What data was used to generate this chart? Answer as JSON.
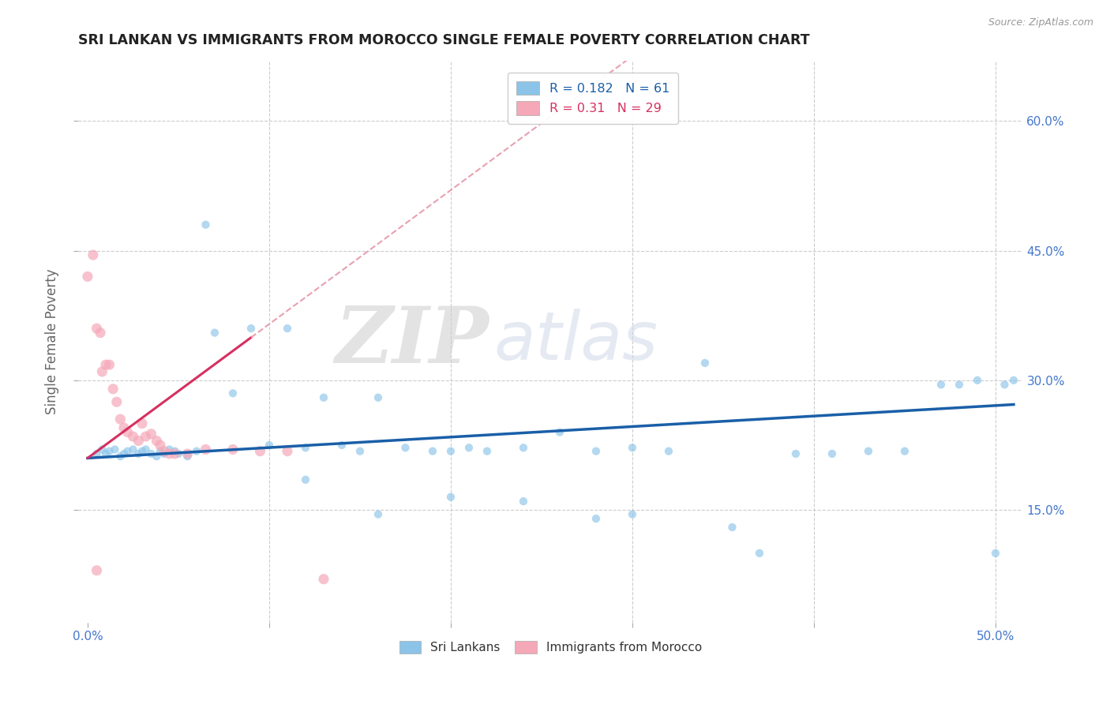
{
  "title": "SRI LANKAN VS IMMIGRANTS FROM MOROCCO SINGLE FEMALE POVERTY CORRELATION CHART",
  "source": "Source: ZipAtlas.com",
  "xlim": [
    -0.005,
    0.515
  ],
  "ylim": [
    0.02,
    0.67
  ],
  "ylabel": "Single Female Poverty",
  "sri_lankan": {
    "x": [
      0.005,
      0.008,
      0.01,
      0.012,
      0.015,
      0.018,
      0.02,
      0.022,
      0.025,
      0.028,
      0.03,
      0.032,
      0.035,
      0.038,
      0.04,
      0.042,
      0.045,
      0.048,
      0.05,
      0.055,
      0.06,
      0.065,
      0.07,
      0.08,
      0.09,
      0.1,
      0.11,
      0.12,
      0.13,
      0.14,
      0.15,
      0.16,
      0.175,
      0.19,
      0.2,
      0.21,
      0.22,
      0.24,
      0.26,
      0.28,
      0.3,
      0.32,
      0.34,
      0.355,
      0.37,
      0.39,
      0.41,
      0.43,
      0.45,
      0.47,
      0.48,
      0.49,
      0.5,
      0.505,
      0.51,
      0.12,
      0.16,
      0.2,
      0.24,
      0.28,
      0.3
    ],
    "y": [
      0.215,
      0.22,
      0.215,
      0.218,
      0.22,
      0.212,
      0.215,
      0.218,
      0.22,
      0.215,
      0.218,
      0.22,
      0.215,
      0.212,
      0.218,
      0.215,
      0.22,
      0.218,
      0.215,
      0.212,
      0.218,
      0.48,
      0.355,
      0.285,
      0.36,
      0.225,
      0.36,
      0.222,
      0.28,
      0.225,
      0.218,
      0.28,
      0.222,
      0.218,
      0.218,
      0.222,
      0.218,
      0.222,
      0.24,
      0.218,
      0.222,
      0.218,
      0.32,
      0.13,
      0.1,
      0.215,
      0.215,
      0.218,
      0.218,
      0.295,
      0.295,
      0.3,
      0.1,
      0.295,
      0.3,
      0.185,
      0.145,
      0.165,
      0.16,
      0.14,
      0.145
    ],
    "size": 55,
    "color": "#8bc4e8",
    "alpha": 0.65,
    "R": 0.182,
    "N": 61,
    "trend_color": "#1a5fa8",
    "trend_x_start": 0.0,
    "trend_x_end": 0.51,
    "trend_y_start": 0.21,
    "trend_y_end": 0.272
  },
  "morocco": {
    "x": [
      0.0,
      0.003,
      0.005,
      0.007,
      0.008,
      0.01,
      0.012,
      0.014,
      0.016,
      0.018,
      0.02,
      0.022,
      0.025,
      0.028,
      0.03,
      0.032,
      0.035,
      0.038,
      0.04,
      0.042,
      0.045,
      0.048,
      0.055,
      0.065,
      0.08,
      0.095,
      0.11,
      0.13,
      0.005
    ],
    "y": [
      0.42,
      0.445,
      0.36,
      0.355,
      0.31,
      0.318,
      0.318,
      0.29,
      0.275,
      0.255,
      0.245,
      0.24,
      0.235,
      0.23,
      0.25,
      0.235,
      0.238,
      0.23,
      0.225,
      0.218,
      0.215,
      0.215,
      0.215,
      0.22,
      0.22,
      0.218,
      0.218,
      0.07,
      0.08
    ],
    "size": 90,
    "color": "#f5a8b8",
    "alpha": 0.7,
    "R": 0.31,
    "N": 29,
    "trend_solid_color": "#d63060",
    "trend_dash_color": "#e8a0b0",
    "trend_solid_x_start": 0.0,
    "trend_solid_x_end": 0.09,
    "trend_dash_x_start": 0.09,
    "trend_dash_x_end": 0.51,
    "trend_y_start": 0.21,
    "trend_slope": 1.55
  },
  "watermark_zip": "ZIP",
  "watermark_atlas": "atlas",
  "background_color": "#ffffff",
  "grid_color": "#cccccc",
  "title_color": "#222222",
  "axis_tick_color": "#4477cc",
  "right_axis_color": "#4477cc"
}
